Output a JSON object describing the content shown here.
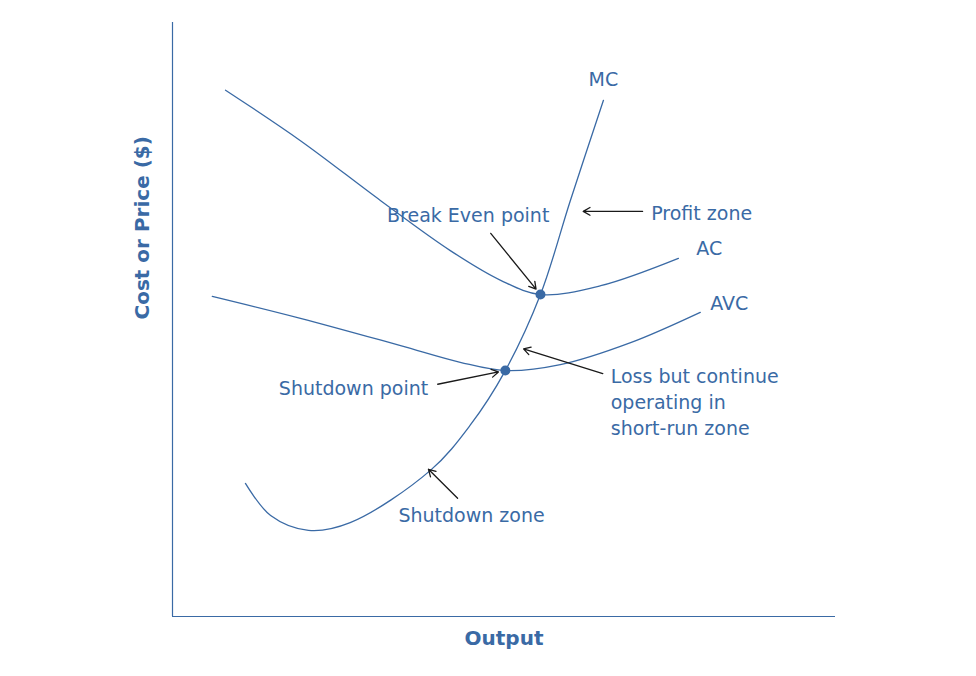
{
  "chart_data": {
    "type": "line",
    "x_label": "Output",
    "y_label": "Cost or Price ($)",
    "xlim": [
      0,
      100
    ],
    "ylim": [
      0,
      100
    ],
    "xticks": [],
    "yticks": [],
    "tick_labels": false,
    "grid": false,
    "color": "#3a6aa5",
    "series": [
      {
        "name": "MC",
        "x": [
          11.0,
          14.8,
          20.5,
          26.8,
          38.9,
          44.9,
          50.2,
          55.5,
          60.0,
          65.0
        ],
        "values": [
          22.4,
          17.0,
          14.5,
          15.8,
          24.6,
          32.2,
          41.4,
          54.2,
          70.0,
          86.9
        ]
      },
      {
        "name": "AC",
        "x": [
          8.0,
          19.3,
          31.4,
          41.9,
          49.5,
          55.5,
          64.6,
          76.3
        ],
        "values": [
          88.6,
          80.1,
          70.0,
          61.6,
          56.6,
          54.2,
          55.7,
          60.3
        ]
      },
      {
        "name": "AVC",
        "x": [
          6.0,
          19.3,
          34.4,
          43.4,
          50.2,
          58.5,
          69.1,
          79.6
        ],
        "values": [
          53.9,
          50.2,
          45.6,
          42.8,
          41.4,
          42.4,
          46.1,
          51.2
        ]
      }
    ],
    "annotations": [
      {
        "text": "Break Even point",
        "x": 55.5,
        "y": 54.2,
        "marker": "circle"
      },
      {
        "text": "Profit zone",
        "x": 61.8,
        "y": 68.2
      },
      {
        "text": "Shutdown point",
        "x": 50.2,
        "y": 41.4,
        "marker": "circle"
      },
      {
        "text": "Loss but continue\noperating in\nshort-run zone",
        "x": 52.8,
        "y": 45.1
      },
      {
        "text": "Shutdown zone",
        "x": 38.5,
        "y": 24.9
      }
    ]
  }
}
